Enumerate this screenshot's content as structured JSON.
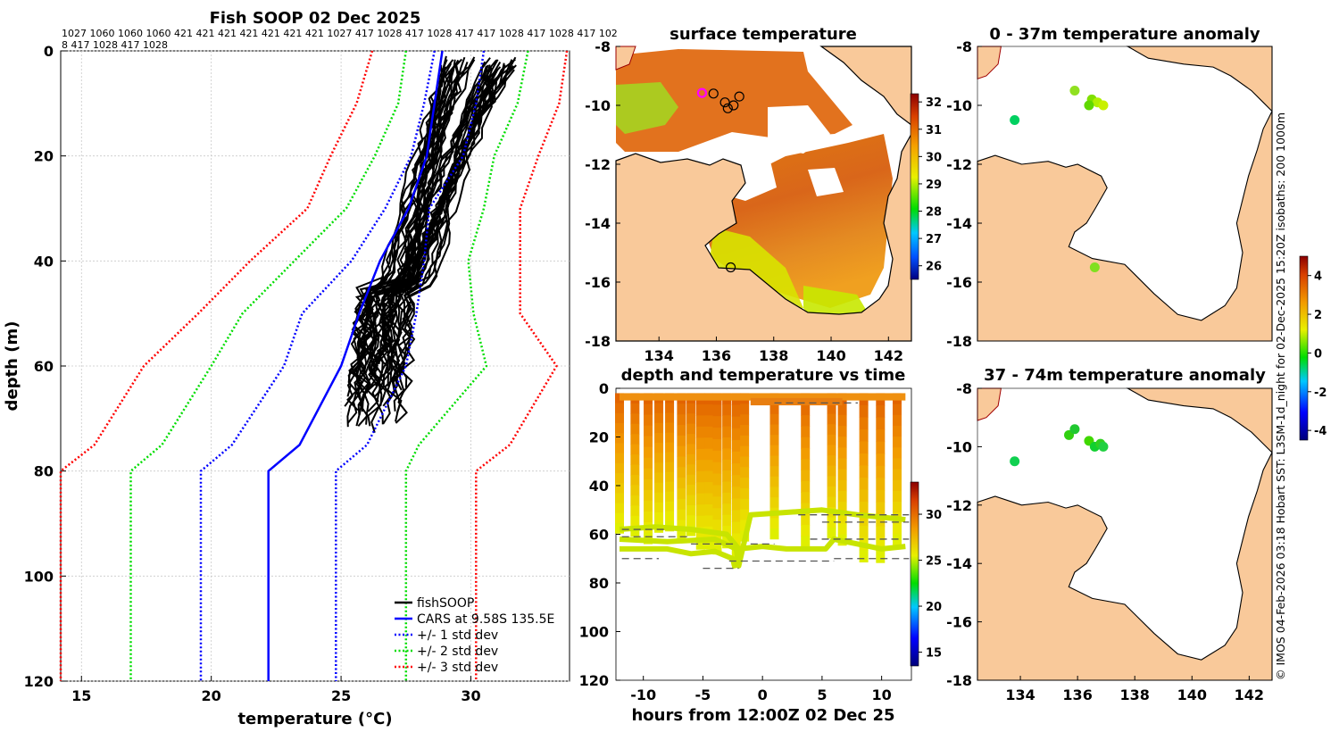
{
  "chart_data": [
    {
      "id": "profile",
      "type": "line",
      "title": "Fish SOOP 02 Dec 2025",
      "xlabel": "temperature (°C)",
      "ylabel": "depth (m)",
      "xlim": [
        14.2,
        33.8
      ],
      "ylim": [
        120,
        0
      ],
      "xticks": [
        15,
        20,
        25,
        30
      ],
      "yticks": [
        0,
        20,
        40,
        60,
        80,
        100,
        120
      ],
      "id_line1": "1027 1060 1060 1060 421 421 421 421 421 421 421 1027 417 1028 417 1028 417 417 1028 417 1028 417 102",
      "id_line2": "8 417 1028 417 1028",
      "legend": [
        "fishSOOP",
        "CARS at 9.58S 135.5E",
        "+/- 1 std dev",
        "+/- 2 std dev",
        "+/- 3 std dev"
      ],
      "depths": [
        0,
        10,
        20,
        30,
        40,
        50,
        60,
        75,
        80,
        120
      ],
      "series": [
        {
          "name": "CARS at 9.58S 135.5E",
          "color": "#0000ff",
          "style": "solid",
          "values": [
            28.9,
            28.6,
            28.3,
            27.6,
            26.5,
            25.7,
            25.0,
            23.4,
            22.2,
            22.2
          ]
        },
        {
          "name": "+1 std dev",
          "color": "#0000ff",
          "style": "dotted",
          "values": [
            30.5,
            30.2,
            29.7,
            28.4,
            28.2,
            27.9,
            27.5,
            26.0,
            24.8,
            24.8
          ]
        },
        {
          "name": "-1 std dev",
          "color": "#0000ff",
          "style": "dotted",
          "values": [
            28.6,
            28.2,
            27.7,
            26.7,
            25.4,
            23.5,
            22.8,
            20.8,
            19.6,
            19.6
          ]
        },
        {
          "name": "+2 std dev",
          "color": "#00dd00",
          "style": "dotted",
          "values": [
            32.2,
            31.8,
            30.9,
            30.5,
            29.9,
            30.1,
            30.6,
            28.0,
            27.5,
            27.5
          ]
        },
        {
          "name": "-2 std dev",
          "color": "#00dd00",
          "style": "dotted",
          "values": [
            27.5,
            27.2,
            26.3,
            25.2,
            23.2,
            21.2,
            20.0,
            18.1,
            16.9,
            16.9
          ]
        },
        {
          "name": "+3 std dev",
          "color": "#ff0000",
          "style": "dotted",
          "values": [
            33.7,
            33.4,
            32.6,
            31.9,
            31.9,
            31.9,
            33.3,
            31.5,
            30.2,
            30.2
          ]
        },
        {
          "name": "-3 std dev",
          "color": "#ff0000",
          "style": "dotted",
          "values": [
            26.2,
            25.6,
            24.6,
            23.7,
            21.5,
            19.5,
            17.4,
            15.5,
            14.2,
            14.2
          ]
        }
      ],
      "fish_soop_profiles": {
        "name": "fishSOOP",
        "color": "#000000",
        "count": 46,
        "surface_temp_range": [
          29.0,
          31.8
        ],
        "bottom_temp_range": [
          25.3,
          27.3
        ],
        "max_depth_range": [
          60,
          74
        ]
      }
    },
    {
      "id": "sst_map",
      "type": "heatmap",
      "title": "surface temperature",
      "xlim": [
        132.5,
        142.8
      ],
      "ylim": [
        -18,
        -8
      ],
      "xticks": [
        134,
        136,
        138,
        140,
        142
      ],
      "yticks": [
        -8,
        -10,
        -12,
        -14,
        -16,
        -18
      ],
      "colorbar_ticks": [
        26,
        27,
        28,
        29,
        30,
        31,
        32
      ],
      "colorbar_range": [
        25.5,
        32.3
      ],
      "observation_points": [
        [
          135.9,
          -9.6
        ],
        [
          136.3,
          -9.9
        ],
        [
          136.6,
          -10.0
        ],
        [
          136.8,
          -9.7
        ],
        [
          136.4,
          -10.1
        ],
        [
          136.5,
          -15.5
        ]
      ],
      "highlight_point": [
        135.5,
        -9.58
      ]
    },
    {
      "id": "time_depth",
      "type": "scatter",
      "title": "depth and temperature vs time",
      "xlabel": "hours from 12:00Z 02 Dec 25",
      "xlim": [
        -12.3,
        12.5
      ],
      "ylim": [
        120,
        0
      ],
      "xticks": [
        -10,
        -5,
        0,
        5,
        10
      ],
      "yticks": [
        0,
        20,
        40,
        60,
        80,
        100,
        120
      ],
      "colorbar_ticks": [
        15,
        20,
        25,
        30
      ],
      "colorbar_range": [
        13.5,
        33.5
      ]
    },
    {
      "id": "anom_0_37",
      "type": "scatter",
      "title": "0 - 37m temperature anomaly",
      "xlim": [
        132.5,
        142.8
      ],
      "ylim": [
        -18,
        -8
      ],
      "yticks": [
        -8,
        -10,
        -12,
        -14,
        -16,
        -18
      ],
      "points": [
        [
          133.8,
          -10.5
        ],
        [
          135.9,
          -9.5
        ],
        [
          136.5,
          -9.8
        ],
        [
          136.7,
          -9.9
        ],
        [
          136.4,
          -10.0
        ],
        [
          136.9,
          -10.0
        ],
        [
          136.6,
          -15.5
        ]
      ]
    },
    {
      "id": "anom_37_74",
      "type": "scatter",
      "title": "37 - 74m temperature anomaly",
      "xlim": [
        132.5,
        142.8
      ],
      "ylim": [
        -18,
        -8
      ],
      "xticks": [
        134,
        136,
        138,
        140,
        142
      ],
      "yticks": [
        -8,
        -10,
        -12,
        -14,
        -16,
        -18
      ],
      "colorbar_ticks": [
        -4,
        -2,
        0,
        2,
        4
      ],
      "colorbar_range": [
        -4.5,
        5
      ],
      "points": [
        [
          133.8,
          -10.5
        ],
        [
          135.7,
          -9.6
        ],
        [
          135.9,
          -9.4
        ],
        [
          136.4,
          -9.8
        ],
        [
          136.6,
          -10.0
        ],
        [
          136.8,
          -9.9
        ],
        [
          136.9,
          -10.0
        ]
      ]
    }
  ],
  "credit": "© IMOS 04-Feb-2026 03:18 Hobart SST: L3SM-1d_night for 02-Dec-2025 15:20Z isobaths: 200  1000m",
  "colors": {
    "land": "#f9c99a",
    "coast": "#000000"
  }
}
